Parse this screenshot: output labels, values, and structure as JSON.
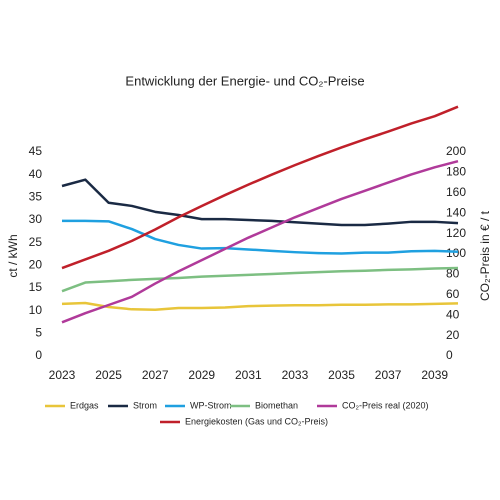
{
  "chart_data": {
    "type": "line",
    "title": "Entwicklung der Energie- und CO₂-Preise",
    "y_label": "ct / kWh",
    "y2_label": "CO₂-Preis in € / t",
    "x": [
      2023,
      2024,
      2025,
      2026,
      2027,
      2028,
      2029,
      2030,
      2031,
      2032,
      2033,
      2034,
      2035,
      2036,
      2037,
      2038,
      2039,
      2040
    ],
    "xlim": [
      2023,
      2040
    ],
    "xticks": [
      2023,
      2025,
      2027,
      2029,
      2031,
      2033,
      2035,
      2037,
      2039
    ],
    "ylim": [
      0,
      45
    ],
    "yticks": [
      0,
      5,
      10,
      15,
      20,
      25,
      30,
      35,
      40,
      45
    ],
    "y2lim": [
      0,
      200
    ],
    "y2ticks": [
      0,
      20,
      40,
      60,
      80,
      100,
      120,
      140,
      160,
      180,
      200
    ],
    "grid": false,
    "legend": "bottom",
    "series": [
      {
        "name": "Erdgas",
        "color": "#e8c53a",
        "values": [
          11.5,
          11.7,
          10.8,
          10.3,
          10.2,
          10.6,
          10.6,
          10.7,
          11.0,
          11.1,
          11.2,
          11.2,
          11.3,
          11.3,
          11.4,
          11.4,
          11.5,
          11.6
        ]
      },
      {
        "name": "Strom",
        "color": "#1a2a44",
        "values": [
          37.5,
          38.9,
          33.8,
          33.1,
          31.8,
          31.1,
          30.2,
          30.2,
          30.0,
          29.8,
          29.5,
          29.2,
          28.9,
          28.9,
          29.2,
          29.6,
          29.6,
          29.3
        ]
      },
      {
        "name": "WP-Strom",
        "color": "#1fa0e0",
        "values": [
          29.8,
          29.8,
          29.7,
          28.0,
          25.8,
          24.5,
          23.7,
          23.8,
          23.5,
          23.2,
          22.9,
          22.7,
          22.6,
          22.8,
          22.8,
          23.1,
          23.2,
          23.0
        ]
      },
      {
        "name": "Biomethan",
        "color": "#7dbf82",
        "values": [
          14.3,
          16.2,
          16.5,
          16.8,
          17.0,
          17.2,
          17.5,
          17.7,
          17.9,
          18.1,
          18.3,
          18.5,
          18.7,
          18.8,
          19.0,
          19.1,
          19.3,
          19.4
        ]
      },
      {
        "name": "CO₂-Preis real (2020)",
        "color": "#b03a9a",
        "axis": "y2",
        "values": [
          33,
          42,
          50,
          58,
          71,
          83,
          94,
          105,
          116,
          126,
          136,
          145,
          154,
          162,
          170,
          178,
          185,
          191
        ]
      },
      {
        "name": "Energiekosten (Gas und CO₂-Preis)",
        "color": "#c0202a",
        "values": [
          19.4,
          21.3,
          23.2,
          25.4,
          27.9,
          30.6,
          33.1,
          35.5,
          37.8,
          40.0,
          42.1,
          44.1,
          46.0,
          47.8,
          49.5,
          51.3,
          52.9,
          55.0
        ]
      }
    ]
  }
}
